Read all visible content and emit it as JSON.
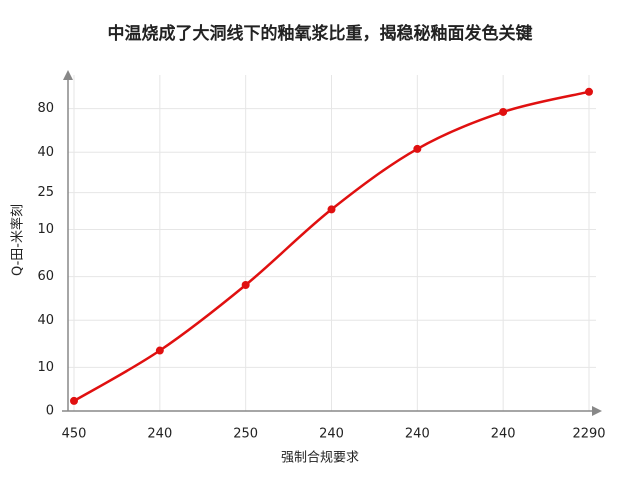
{
  "chart_data": {
    "type": "line",
    "title": "中温烧成了大洞线下的釉氧浆比重，揭稳秘釉面发色关键",
    "x_label": "强制合规要求",
    "y_label": "Q-田-米率刻",
    "categories": [
      "450",
      "240",
      "250",
      "240",
      "240",
      "240",
      "2290"
    ],
    "series": [
      {
        "name": null,
        "color": "#e01010",
        "values": [
          3,
          18,
          37.5,
          60,
          78,
          89,
          95
        ]
      }
    ],
    "ylim": [
      0,
      100
    ],
    "yticks": [
      {
        "value": 90,
        "label": "80"
      },
      {
        "value": 77,
        "label": "40"
      },
      {
        "value": 65,
        "label": "25"
      },
      {
        "value": 54,
        "label": "10"
      },
      {
        "value": 40,
        "label": "60"
      },
      {
        "value": 27,
        "label": "40"
      },
      {
        "value": 13,
        "label": "10"
      },
      0
    ],
    "grid": true
  }
}
